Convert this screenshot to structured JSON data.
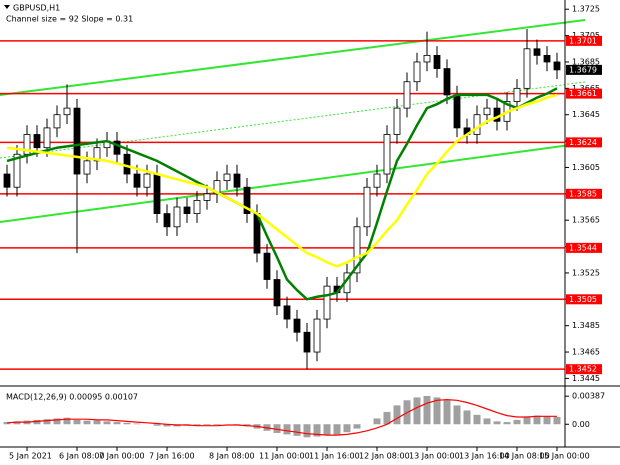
{
  "chart_data": [
    {
      "type": "candlestick",
      "title": "GBPUSD,H1",
      "subtitle": "Channel size = 92 Slope = 0.31",
      "categories": [
        null,
        null,
        "5 Jan 2021",
        null,
        null,
        null,
        null,
        "6 Jan 08:00",
        null,
        null,
        null,
        "7 Jan 00:00",
        null,
        null,
        null,
        null,
        "7 Jan 16:00",
        null,
        null,
        null,
        null,
        null,
        "8 Jan 08:00",
        null,
        null,
        null,
        null,
        "11 Jan 00:00",
        null,
        null,
        null,
        null,
        "11 Jan 16:00",
        null,
        null,
        null,
        null,
        "12 Jan 08:00",
        null,
        null,
        null,
        null,
        "13 Jan 00:00",
        null,
        null,
        null,
        null,
        "13 Jan 16:00",
        null,
        null,
        null,
        "14 Jan 08:00",
        null,
        null,
        null,
        "15 Jan 00:00"
      ],
      "open": [
        1.36,
        1.359,
        1.3615,
        1.363,
        1.362,
        1.3635,
        1.3645,
        1.365,
        1.36,
        1.361,
        1.362,
        1.3625,
        1.3615,
        1.36,
        1.359,
        1.36,
        1.357,
        1.356,
        1.3575,
        1.357,
        1.358,
        1.3585,
        1.3595,
        1.36,
        1.359,
        1.357,
        1.354,
        1.352,
        1.35,
        1.349,
        1.348,
        1.3465,
        1.349,
        1.3515,
        1.351,
        1.3525,
        1.356,
        1.359,
        1.36,
        1.363,
        1.365,
        1.367,
        1.3685,
        1.369,
        1.368,
        1.366,
        1.3635,
        1.363,
        1.3645,
        1.365,
        1.364,
        1.3655,
        1.3665,
        1.3695,
        1.369,
        1.3685
      ],
      "high": [
        1.3607,
        1.3622,
        1.3637,
        1.3637,
        1.3642,
        1.3652,
        1.3668,
        1.3657,
        1.3617,
        1.3627,
        1.3632,
        1.3632,
        1.3622,
        1.3607,
        1.3607,
        1.3607,
        1.3577,
        1.3582,
        1.3582,
        1.3587,
        1.3592,
        1.3602,
        1.3607,
        1.3607,
        1.3597,
        1.3577,
        1.3547,
        1.3527,
        1.3507,
        1.3497,
        1.3487,
        1.3497,
        1.3522,
        1.3522,
        1.3532,
        1.3567,
        1.3597,
        1.3607,
        1.3637,
        1.3657,
        1.3677,
        1.3692,
        1.3708,
        1.3697,
        1.3687,
        1.3667,
        1.3642,
        1.3652,
        1.3657,
        1.3657,
        1.3662,
        1.3672,
        1.371,
        1.3702,
        1.3697,
        1.3692
      ],
      "low": [
        1.3583,
        1.3583,
        1.3608,
        1.3613,
        1.3613,
        1.3628,
        1.3638,
        1.354,
        1.3593,
        1.3603,
        1.3613,
        1.3608,
        1.3593,
        1.3583,
        1.3583,
        1.3563,
        1.3553,
        1.3553,
        1.3563,
        1.3563,
        1.3573,
        1.3578,
        1.3588,
        1.3583,
        1.3563,
        1.3533,
        1.3513,
        1.3493,
        1.3483,
        1.3473,
        1.3452,
        1.3458,
        1.3483,
        1.3503,
        1.3503,
        1.3518,
        1.3553,
        1.3583,
        1.3593,
        1.3623,
        1.3643,
        1.3663,
        1.3678,
        1.3673,
        1.3653,
        1.3628,
        1.3623,
        1.3623,
        1.3638,
        1.3633,
        1.3633,
        1.3648,
        1.3658,
        1.3683,
        1.3678,
        1.3672
      ],
      "close": [
        1.359,
        1.3615,
        1.363,
        1.362,
        1.3635,
        1.3645,
        1.365,
        1.36,
        1.361,
        1.362,
        1.3625,
        1.3615,
        1.36,
        1.359,
        1.36,
        1.357,
        1.356,
        1.3575,
        1.357,
        1.358,
        1.3585,
        1.3595,
        1.36,
        1.359,
        1.357,
        1.354,
        1.352,
        1.35,
        1.349,
        1.348,
        1.3465,
        1.349,
        1.3515,
        1.351,
        1.3525,
        1.356,
        1.359,
        1.36,
        1.363,
        1.365,
        1.367,
        1.3685,
        1.369,
        1.368,
        1.366,
        1.3635,
        1.363,
        1.3645,
        1.365,
        1.364,
        1.3655,
        1.3665,
        1.3695,
        1.369,
        1.3685,
        1.3679
      ],
      "series": [
        {
          "color": "#008000",
          "values": [
            1.361,
            1.3612,
            1.3614,
            1.3616,
            1.3618,
            1.362,
            1.3621,
            1.3622,
            1.3623,
            1.3624,
            1.3625,
            1.3622,
            1.3619,
            1.3616,
            1.3613,
            1.361,
            1.3606,
            1.3602,
            1.3598,
            1.3594,
            1.359,
            1.3586,
            1.3582,
            1.3578,
            1.3574,
            1.357,
            1.3553,
            1.3537,
            1.352,
            1.3512,
            1.3505,
            1.3507,
            1.3508,
            1.351,
            1.352,
            1.353,
            1.354,
            1.3563,
            1.3587,
            1.361,
            1.3623,
            1.3637,
            1.365,
            1.3653,
            1.3657,
            1.366,
            1.366,
            1.366,
            1.366,
            1.3657,
            1.3653,
            1.365,
            1.3654,
            1.3658,
            1.3661,
            1.3665
          ]
        },
        {
          "color": "#ffff00",
          "values": [
            1.362,
            1.3619,
            1.3618,
            1.3617,
            1.3616,
            1.3615,
            1.3614,
            1.3613,
            1.3612,
            1.3611,
            1.361,
            1.3608,
            1.3606,
            1.3604,
            1.3602,
            1.36,
            1.3598,
            1.3596,
            1.3594,
            1.3592,
            1.359,
            1.3586,
            1.3582,
            1.3578,
            1.3574,
            1.357,
            1.3564,
            1.3558,
            1.3552,
            1.3546,
            1.354,
            1.3537,
            1.3533,
            1.353,
            1.3533,
            1.3537,
            1.354,
            1.3548,
            1.3557,
            1.3565,
            1.3577,
            1.3588,
            1.36,
            1.3608,
            1.3617,
            1.3625,
            1.363,
            1.3635,
            1.364,
            1.3643,
            1.3647,
            1.365,
            1.3653,
            1.3655,
            1.3658,
            1.366
          ]
        }
      ],
      "levels": {
        "color": "#ff0000",
        "values": [
          1.3701,
          1.3661,
          1.3624,
          1.3585,
          1.3544,
          1.3505,
          1.3452
        ]
      },
      "last_price": 1.3679,
      "ylim": [
        1.344,
        1.3732
      ],
      "yticks": [
        1.3725,
        1.3705,
        1.3685,
        1.3665,
        1.3645,
        1.3625,
        1.3605,
        1.3585,
        1.3565,
        1.3545,
        1.3525,
        1.3505,
        1.3485,
        1.3465,
        1.3445
      ]
    },
    {
      "type": "bar",
      "title": "MACD(12,26,9) 0.00095 0.00107",
      "color": "#a0a0a0",
      "values": [
        0.0003,
        0.0004,
        0.0005,
        0.0006,
        0.0007,
        0.0008,
        0.0009,
        0.0006,
        0.0005,
        0.0005,
        0.0004,
        0.0003,
        0.0002,
        0.0001,
        0.0,
        -0.0002,
        -0.0003,
        -0.0003,
        -0.0002,
        -0.0002,
        -0.0001,
        -0.0001,
        0.0,
        -0.0001,
        -0.0003,
        -0.0006,
        -0.0009,
        -0.0012,
        -0.0014,
        -0.0016,
        -0.0018,
        -0.0017,
        -0.0015,
        -0.0014,
        -0.0011,
        -0.0006,
        0.0,
        0.0008,
        0.0017,
        0.0026,
        0.0033,
        0.0037,
        0.0039,
        0.0037,
        0.0033,
        0.0026,
        0.0019,
        0.0013,
        0.0008,
        0.0004,
        0.0003,
        0.0006,
        0.001,
        0.0012,
        0.0011,
        0.001
      ],
      "series": [
        {
          "color": "#ff0000",
          "values": [
            0.0002,
            0.0003,
            0.0003,
            0.0004,
            0.0005,
            0.0006,
            0.0007,
            0.0007,
            0.0007,
            0.0006,
            0.0006,
            0.0005,
            0.0004,
            0.0003,
            0.0002,
            0.0001,
            0.0,
            -0.0001,
            -0.0001,
            -0.0002,
            -0.0002,
            -0.0002,
            -0.0001,
            -0.0001,
            -0.0002,
            -0.0003,
            -0.0005,
            -0.0007,
            -0.0009,
            -0.0011,
            -0.0013,
            -0.0014,
            -0.0015,
            -0.0015,
            -0.0014,
            -0.0012,
            -0.0009,
            -0.0005,
            0.0,
            0.0008,
            0.0016,
            0.0023,
            0.0029,
            0.0033,
            0.0034,
            0.0033,
            0.003,
            0.0026,
            0.0021,
            0.0016,
            0.0012,
            0.001,
            0.001,
            0.0011,
            0.0011,
            0.0011
          ]
        }
      ],
      "ylim": [
        -0.003,
        0.005
      ],
      "yticks": [
        0.00387,
        {
          "value": 0,
          "label": "0.00"
        }
      ]
    }
  ]
}
